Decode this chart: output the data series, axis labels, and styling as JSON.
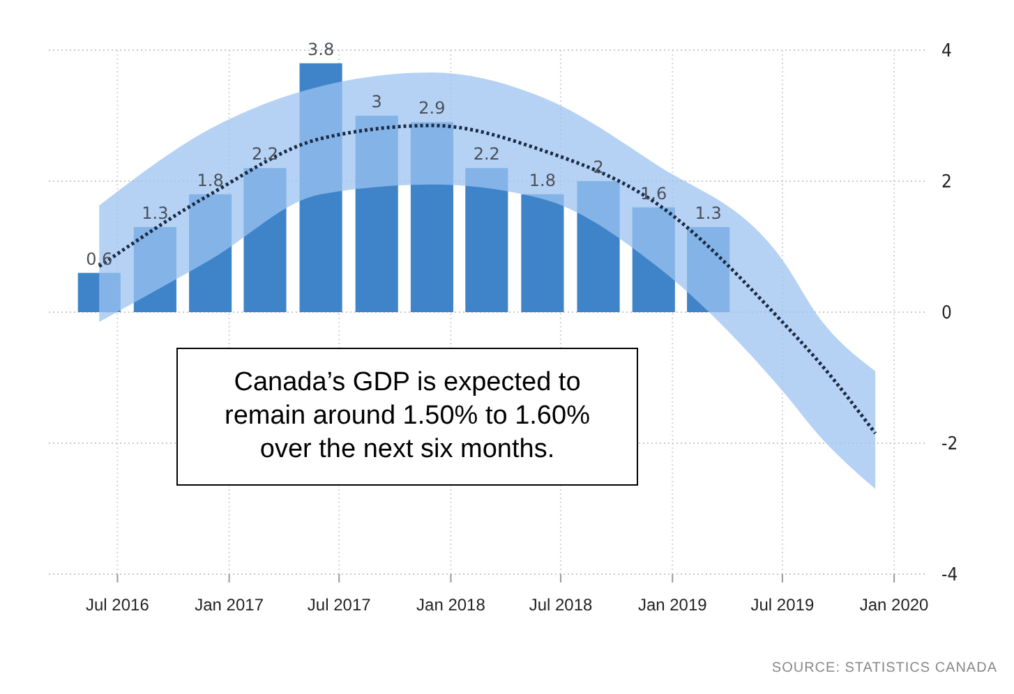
{
  "chart_data": {
    "type": "bar",
    "x": [
      "2016-06-01",
      "2016-09-01",
      "2016-12-01",
      "2017-03-01",
      "2017-06-01",
      "2017-09-01",
      "2017-12-01",
      "2018-03-01",
      "2018-06-01",
      "2018-09-01",
      "2018-12-01",
      "2019-03-01"
    ],
    "series": [
      {
        "color": "#3f84c9",
        "values": [
          0.6,
          1.3,
          1.8,
          2.2,
          3.8,
          3,
          2.9,
          2.2,
          1.8,
          2,
          1.6,
          1.3
        ],
        "value_labels": [
          "0.6",
          "1.3",
          "1.8",
          "2.2",
          "3.8",
          "3",
          "2.9",
          "2.2",
          "1.8",
          "2",
          "1.6",
          "1.3"
        ]
      },
      {
        "type": "line",
        "color": "#1c2b44",
        "x": [
          "2016-06-01",
          "2016-12-01",
          "2017-06-01",
          "2017-12-01",
          "2018-06-01",
          "2018-12-01",
          "2019-07-01",
          "2019-09-01",
          "2019-12-01"
        ],
        "values": [
          0.7,
          1.8,
          2.65,
          2.85,
          2.47,
          1.69,
          -0.15,
          -0.78,
          -1.85
        ],
        "lower": [
          -0.15,
          0.8,
          1.8,
          1.95,
          1.73,
          0.74,
          -1.2,
          -1.9,
          -2.7
        ],
        "upper": [
          1.63,
          2.8,
          3.45,
          3.66,
          3.28,
          2.28,
          0.8,
          -0.1,
          -0.9
        ]
      }
    ],
    "line_style": "dotted",
    "grid": true,
    "xlim": [
      "2016-03-10",
      "2020-02-25"
    ],
    "xticks": [
      {
        "value": "2016-07-01",
        "label": "Jul 2016"
      },
      {
        "value": "2017-01-01",
        "label": "Jan 2017"
      },
      {
        "value": "2017-07-01",
        "label": "Jul 2017"
      },
      {
        "value": "2018-01-01",
        "label": "Jan 2018"
      },
      {
        "value": "2018-07-01",
        "label": "Jul 2018"
      },
      {
        "value": "2019-01-01",
        "label": "Jan 2019"
      },
      {
        "value": "2019-07-01",
        "label": "Jul 2019"
      },
      {
        "value": "2020-01-01",
        "label": "Jan 2020"
      }
    ],
    "ylim": [
      -4,
      4
    ],
    "yticks": [
      -4,
      -2,
      0,
      2,
      4
    ],
    "annotations": [
      "Canada’s GDP is expected to remain around 1.50% to 1.60% over the next six months.",
      "SOURCE: STATISTICS CANADA"
    ]
  }
}
